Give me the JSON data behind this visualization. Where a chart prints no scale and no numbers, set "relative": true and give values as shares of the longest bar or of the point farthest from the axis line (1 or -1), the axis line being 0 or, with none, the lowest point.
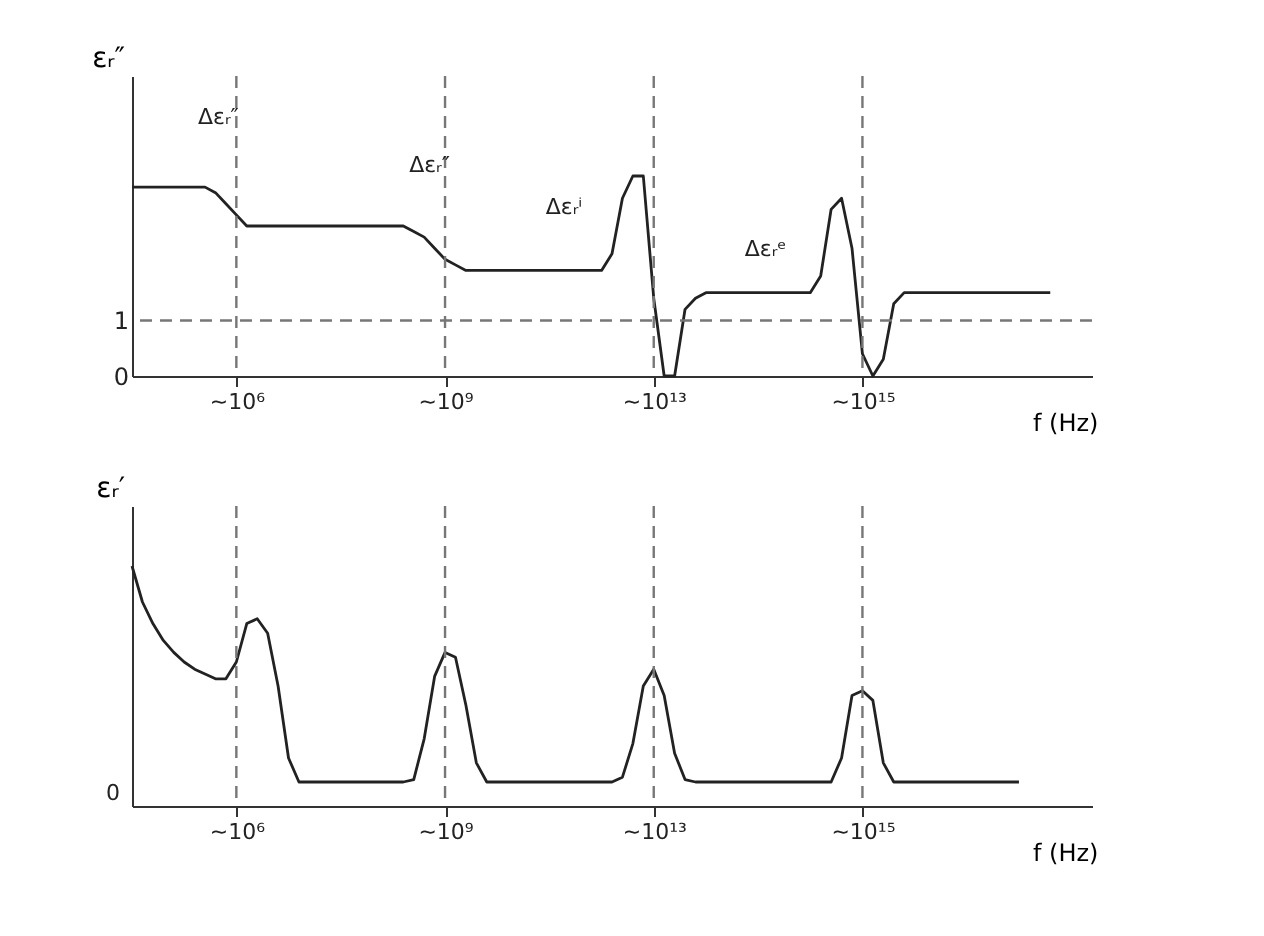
{
  "chart_data": [
    {
      "type": "line",
      "ylabel": "εᵣ″",
      "xlabel": "f (Hz)",
      "ylim": [
        0,
        5.4
      ],
      "yticks": [
        0,
        1
      ],
      "grid": false,
      "marker": "none",
      "line_style": "solid",
      "categories": [
        null,
        null,
        null,
        null,
        null,
        null,
        null,
        null,
        null,
        null,
        "~10⁶",
        null,
        null,
        null,
        null,
        null,
        null,
        null,
        null,
        null,
        null,
        null,
        null,
        null,
        null,
        null,
        null,
        null,
        null,
        null,
        "~10⁹",
        null,
        null,
        null,
        null,
        null,
        null,
        null,
        null,
        null,
        null,
        null,
        null,
        null,
        null,
        null,
        null,
        null,
        null,
        null,
        "~10¹³",
        null,
        null,
        null,
        null,
        null,
        null,
        null,
        null,
        null,
        null,
        null,
        null,
        null,
        null,
        null,
        null,
        null,
        null,
        null,
        "~10¹⁵",
        null,
        null,
        null,
        null,
        null,
        null,
        null,
        null,
        null,
        null,
        null,
        null,
        null,
        null,
        null,
        null,
        null,
        null
      ],
      "series": [
        {
          "color": "#222222",
          "values": [
            3.4,
            3.4,
            3.4,
            3.4,
            3.4,
            3.4,
            3.4,
            3.4,
            3.3,
            3.1,
            2.9,
            2.7,
            2.7,
            2.7,
            2.7,
            2.7,
            2.7,
            2.7,
            2.7,
            2.7,
            2.7,
            2.7,
            2.7,
            2.7,
            2.7,
            2.7,
            2.7,
            2.6,
            2.5,
            2.3,
            2.1,
            2.0,
            1.9,
            1.9,
            1.9,
            1.9,
            1.9,
            1.9,
            1.9,
            1.9,
            1.9,
            1.9,
            1.9,
            1.9,
            1.9,
            1.9,
            2.2,
            3.2,
            3.6,
            3.6,
            1.4,
            0.0,
            0.0,
            1.2,
            1.4,
            1.5,
            1.5,
            1.5,
            1.5,
            1.5,
            1.5,
            1.5,
            1.5,
            1.5,
            1.5,
            1.5,
            1.8,
            3.0,
            3.2,
            2.3,
            0.4,
            0.0,
            0.3,
            1.3,
            1.5,
            1.5,
            1.5,
            1.5,
            1.5,
            1.5,
            1.5,
            1.5,
            1.5,
            1.5,
            1.5,
            1.5,
            1.5,
            1.5,
            1.5
          ]
        }
      ],
      "ref_lines": [
        {
          "axis": "y",
          "value": 1,
          "line_style": "dashed",
          "color": "#777777"
        },
        {
          "axis": "x",
          "value": "~10⁶",
          "line_style": "dashed",
          "color": "#777777"
        },
        {
          "axis": "x",
          "value": "~10⁹",
          "line_style": "dashed",
          "color": "#777777"
        },
        {
          "axis": "x",
          "value": "~10¹³",
          "line_style": "dashed",
          "color": "#777777"
        },
        {
          "axis": "x",
          "value": "~10¹⁵",
          "line_style": "dashed",
          "color": "#777777"
        }
      ],
      "annotations": [
        null,
        "Δεᵣ″",
        "Δεᵣ″",
        "Δεᵣⁱ",
        "Δεᵣᵉ"
      ]
    },
    {
      "type": "line",
      "ylabel": "εᵣ′",
      "xlabel": "f (Hz)",
      "relative": true,
      "grid": false,
      "marker": "none",
      "line_style": "solid",
      "categories": [
        null,
        null,
        null,
        null,
        null,
        null,
        null,
        null,
        null,
        null,
        "~10⁶",
        null,
        null,
        null,
        null,
        null,
        null,
        null,
        null,
        null,
        null,
        null,
        null,
        null,
        null,
        null,
        null,
        null,
        null,
        null,
        "~10⁹",
        null,
        null,
        null,
        null,
        null,
        null,
        null,
        null,
        null,
        null,
        null,
        null,
        null,
        null,
        null,
        null,
        null,
        null,
        null,
        "~10¹³",
        null,
        null,
        null,
        null,
        null,
        null,
        null,
        null,
        null,
        null,
        null,
        null,
        null,
        null,
        null,
        null,
        null,
        null,
        null,
        "~10¹⁵",
        null,
        null,
        null,
        null,
        null,
        null,
        null,
        null,
        null,
        null,
        null,
        null,
        null,
        null,
        null,
        null,
        null,
        null
      ],
      "series": [
        {
          "color": "#222222",
          "values": [
            1.0,
            0.85,
            0.76,
            0.69,
            0.64,
            0.6,
            0.57,
            0.55,
            0.53,
            0.53,
            0.6,
            0.76,
            0.78,
            0.72,
            0.5,
            0.2,
            0.1,
            0.1,
            0.1,
            0.1,
            0.1,
            0.1,
            0.1,
            0.1,
            0.1,
            0.1,
            0.1,
            0.11,
            0.28,
            0.54,
            0.64,
            0.62,
            0.42,
            0.18,
            0.1,
            0.1,
            0.1,
            0.1,
            0.1,
            0.1,
            0.1,
            0.1,
            0.1,
            0.1,
            0.1,
            0.1,
            0.1,
            0.12,
            0.26,
            0.5,
            0.57,
            0.46,
            0.22,
            0.11,
            0.1,
            0.1,
            0.1,
            0.1,
            0.1,
            0.1,
            0.1,
            0.1,
            0.1,
            0.1,
            0.1,
            0.1,
            0.1,
            0.1,
            0.2,
            0.46,
            0.48,
            0.44,
            0.18,
            0.1,
            0.1,
            0.1,
            0.1,
            0.1,
            0.1,
            0.1,
            0.1,
            0.1,
            0.1,
            0.1,
            0.1,
            0.1,
            null,
            null,
            null
          ]
        }
      ],
      "ref_lines": [
        {
          "axis": "x",
          "value": "~10⁶",
          "line_style": "dashed",
          "color": "#777777"
        },
        {
          "axis": "x",
          "value": "~10⁹",
          "line_style": "dashed",
          "color": "#777777"
        },
        {
          "axis": "x",
          "value": "~10¹³",
          "line_style": "dashed",
          "color": "#777777"
        },
        {
          "axis": "x",
          "value": "~10¹⁵",
          "line_style": "dashed",
          "color": "#777777"
        }
      ],
      "annotations": [
        "0"
      ]
    }
  ]
}
